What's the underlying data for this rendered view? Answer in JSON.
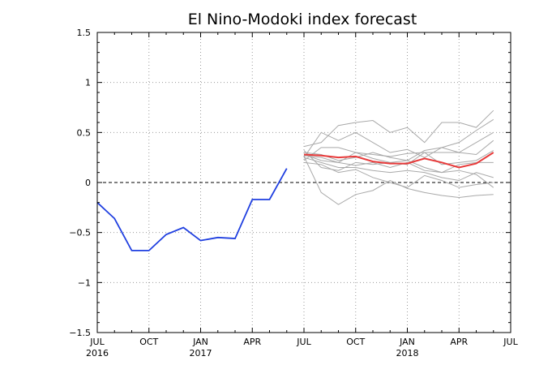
{
  "chart_data": {
    "type": "line",
    "title": "El Nino-Modoki index forecast",
    "xlabel": "",
    "ylabel": "",
    "xlim": [
      "2016-07",
      "2018-07"
    ],
    "ylim": [
      -1.5,
      1.5
    ],
    "y_ticks": [
      -1.5,
      -1,
      -0.5,
      0,
      0.5,
      1,
      1.5
    ],
    "y_tick_labels": [
      "-1.5",
      "-1",
      "-0.5",
      "0",
      "0.5",
      "1",
      "1.5"
    ],
    "x_ticks": [
      {
        "date": "2016-07",
        "label": "JUL",
        "year": "2016"
      },
      {
        "date": "2016-10",
        "label": "OCT",
        "year": ""
      },
      {
        "date": "2017-01",
        "label": "JAN",
        "year": "2017"
      },
      {
        "date": "2017-04",
        "label": "APR",
        "year": ""
      },
      {
        "date": "2017-07",
        "label": "JUL",
        "year": ""
      },
      {
        "date": "2017-10",
        "label": "OCT",
        "year": ""
      },
      {
        "date": "2018-01",
        "label": "JAN",
        "year": "2018"
      },
      {
        "date": "2018-04",
        "label": "APR",
        "year": ""
      },
      {
        "date": "2018-07",
        "label": "JUL",
        "year": ""
      }
    ],
    "grid": true,
    "zero_line": "dashed",
    "colors": {
      "observed": "#1f3fe0",
      "ensemble_mean": "#e83a3a",
      "ensemble_members": "#a9a9a9",
      "grid": "#9a9a9a"
    },
    "observed": {
      "x": [
        "2016-07",
        "2016-08",
        "2016-09",
        "2016-10",
        "2016-11",
        "2016-12",
        "2017-01",
        "2017-02",
        "2017-03",
        "2017-04",
        "2017-05",
        "2017-06"
      ],
      "values": [
        -0.2,
        -0.36,
        -0.68,
        -0.68,
        -0.52,
        -0.45,
        -0.58,
        -0.55,
        -0.56,
        -0.17,
        -0.17,
        0.14
      ]
    },
    "forecast_x": [
      "2017-07",
      "2017-08",
      "2017-09",
      "2017-10",
      "2017-11",
      "2017-12",
      "2018-01",
      "2018-02",
      "2018-03",
      "2018-04",
      "2018-05",
      "2018-06"
    ],
    "ensemble_mean": [
      0.28,
      0.27,
      0.25,
      0.26,
      0.21,
      0.19,
      0.19,
      0.24,
      0.2,
      0.15,
      0.19,
      0.3
    ],
    "ensemble_members": [
      [
        0.36,
        0.4,
        0.57,
        0.6,
        0.62,
        0.5,
        0.55,
        0.4,
        0.6,
        0.6,
        0.55,
        0.72
      ],
      [
        0.25,
        0.5,
        0.42,
        0.5,
        0.4,
        0.3,
        0.33,
        0.25,
        0.35,
        0.4,
        0.52,
        0.63
      ],
      [
        0.22,
        0.35,
        0.35,
        0.3,
        0.28,
        0.26,
        0.29,
        0.3,
        0.3,
        0.3,
        0.4,
        0.5
      ],
      [
        0.27,
        0.25,
        0.2,
        0.3,
        0.24,
        0.2,
        0.22,
        0.32,
        0.35,
        0.3,
        0.28,
        0.42
      ],
      [
        0.32,
        0.15,
        0.12,
        0.2,
        0.18,
        0.2,
        0.18,
        0.3,
        0.18,
        0.2,
        0.22,
        0.32
      ],
      [
        0.3,
        0.28,
        0.22,
        0.25,
        0.3,
        0.25,
        0.22,
        0.15,
        0.1,
        0.18,
        0.2,
        0.2
      ],
      [
        0.25,
        0.2,
        0.15,
        0.15,
        0.12,
        0.1,
        0.12,
        0.1,
        0.05,
        0.02,
        0.1,
        0.05
      ],
      [
        0.2,
        0.18,
        0.1,
        0.13,
        0.05,
        0.0,
        -0.05,
        0.07,
        0.02,
        -0.05,
        -0.02,
        0.0
      ],
      [
        0.28,
        0.22,
        0.2,
        0.17,
        0.2,
        0.15,
        0.2,
        0.12,
        0.1,
        0.12,
        0.08,
        -0.05
      ],
      [
        0.26,
        -0.1,
        -0.22,
        -0.12,
        -0.08,
        0.02,
        -0.06,
        -0.1,
        -0.13,
        -0.15,
        -0.13,
        -0.12
      ]
    ]
  }
}
